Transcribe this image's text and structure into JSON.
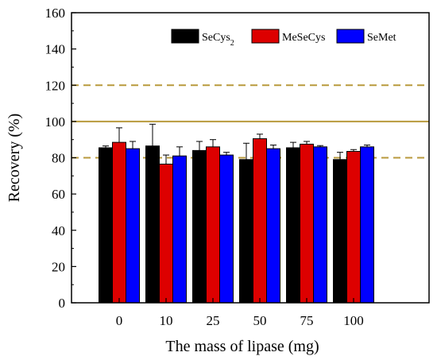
{
  "chart_data": {
    "type": "bar",
    "xlabel": "The mass of lipase (mg)",
    "ylabel": "Recovery (%)",
    "ylim": [
      0,
      160
    ],
    "yticks": [
      0,
      20,
      40,
      60,
      80,
      100,
      120,
      140,
      160
    ],
    "categories": [
      "0",
      "10",
      "25",
      "50",
      "75",
      "100"
    ],
    "series": [
      {
        "name": "SeCys",
        "name_sub": "2",
        "color": "#000000",
        "values": [
          85.5,
          86.5,
          84,
          79,
          85.5,
          79
        ],
        "errors": [
          1,
          12,
          5,
          9,
          3,
          4
        ]
      },
      {
        "name": "MeSeCys",
        "color": "#dd0000",
        "values": [
          88.5,
          76.5,
          86,
          90.5,
          87.5,
          83.5
        ],
        "errors": [
          8,
          5,
          4,
          2.5,
          1.5,
          1
        ]
      },
      {
        "name": "SeMet",
        "color": "#0000ff",
        "values": [
          85,
          81,
          81.5,
          85,
          86,
          86
        ],
        "errors": [
          4,
          5,
          1.5,
          2,
          0.7,
          1
        ]
      }
    ],
    "reference_lines": [
      {
        "y": 120,
        "style": "dashed",
        "color": "#b89a3c"
      },
      {
        "y": 100,
        "style": "solid",
        "color": "#b89a3c"
      },
      {
        "y": 80,
        "style": "dashed",
        "color": "#b89a3c"
      }
    ],
    "legend_position": "top-right"
  }
}
